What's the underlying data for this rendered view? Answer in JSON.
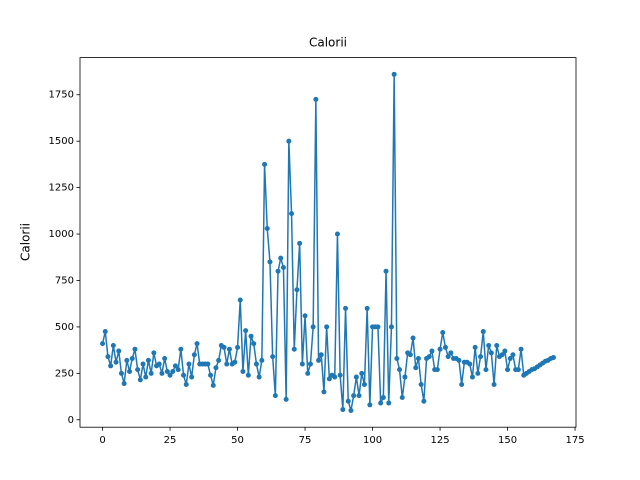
{
  "chart_data": {
    "type": "line",
    "title": "Calorii",
    "y_label": "Calorii",
    "x": [
      0,
      1,
      2,
      3,
      4,
      5,
      6,
      7,
      8,
      9,
      10,
      11,
      12,
      13,
      14,
      15,
      16,
      17,
      18,
      19,
      20,
      21,
      22,
      23,
      24,
      25,
      26,
      27,
      28,
      29,
      30,
      31,
      32,
      33,
      34,
      35,
      36,
      37,
      38,
      39,
      40,
      41,
      42,
      43,
      44,
      45,
      46,
      47,
      48,
      49,
      50,
      51,
      52,
      53,
      54,
      55,
      56,
      57,
      58,
      59,
      60,
      61,
      62,
      63,
      64,
      65,
      66,
      67,
      68,
      69,
      70,
      71,
      72,
      73,
      74,
      75,
      76,
      77,
      78,
      79,
      80,
      81,
      82,
      83,
      84,
      85,
      86,
      87,
      88,
      89,
      90,
      91,
      92,
      93,
      94,
      95,
      96,
      97,
      98,
      99,
      100,
      101,
      102,
      103,
      104,
      105,
      106,
      107,
      108,
      109,
      110,
      111,
      112,
      113,
      114,
      115,
      116,
      117,
      118,
      119,
      120,
      121,
      122,
      123,
      124,
      125,
      126,
      127,
      128,
      129,
      130,
      131,
      132,
      133,
      134,
      135,
      136,
      137,
      138,
      139,
      140,
      141,
      142,
      143,
      144,
      145,
      146,
      147,
      148,
      149,
      150,
      151,
      152,
      153,
      154,
      155,
      156,
      157,
      158,
      159,
      160,
      161,
      162,
      163,
      164,
      165,
      166,
      167
    ],
    "series": [
      {
        "color": "#1f77b4",
        "values": [
          410,
          475,
          340,
          290,
          400,
          310,
          370,
          250,
          195,
          320,
          260,
          330,
          380,
          270,
          215,
          300,
          230,
          320,
          250,
          360,
          290,
          300,
          250,
          330,
          260,
          240,
          260,
          290,
          270,
          380,
          240,
          190,
          300,
          230,
          350,
          410,
          300,
          300,
          300,
          300,
          240,
          185,
          280,
          320,
          400,
          390,
          300,
          380,
          300,
          310,
          390,
          645,
          260,
          480,
          240,
          450,
          410,
          300,
          230,
          320,
          1375,
          1030,
          850,
          340,
          130,
          800,
          870,
          820,
          110,
          1500,
          1110,
          380,
          700,
          950,
          300,
          560,
          250,
          300,
          500,
          1725,
          320,
          350,
          150,
          500,
          220,
          240,
          230,
          1000,
          240,
          55,
          600,
          100,
          50,
          130,
          230,
          130,
          250,
          190,
          600,
          80,
          500,
          500,
          500,
          90,
          120,
          800,
          90,
          500,
          1860,
          330,
          270,
          120,
          230,
          360,
          350,
          440,
          280,
          330,
          190,
          100,
          330,
          340,
          370,
          270,
          270,
          380,
          470,
          390,
          340,
          360,
          330,
          330,
          320,
          190,
          310,
          310,
          300,
          230,
          390,
          250,
          340,
          475,
          270,
          400,
          360,
          190,
          400,
          340,
          350,
          370,
          270,
          330,
          350,
          270,
          270,
          380,
          240,
          250,
          260,
          270,
          275,
          285,
          295,
          305,
          315,
          320,
          330,
          335
        ]
      }
    ],
    "xlim": [
      -8.35,
      175.35
    ],
    "ylim": [
      -40,
      1950
    ],
    "xticks": [
      0,
      25,
      50,
      75,
      100,
      125,
      150,
      175
    ],
    "yticks": [
      0,
      250,
      500,
      750,
      1000,
      1250,
      1500,
      1750
    ]
  }
}
